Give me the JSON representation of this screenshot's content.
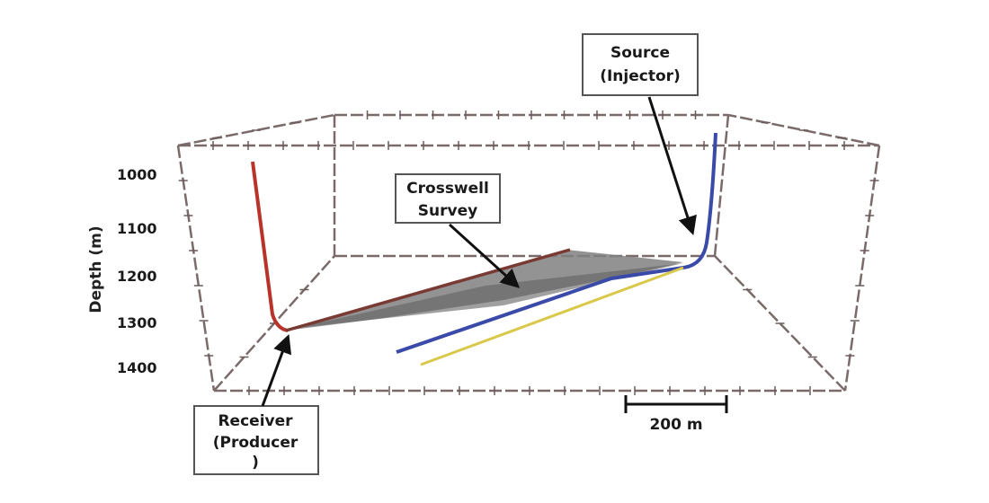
{
  "axis": {
    "ylabel": "Depth (m)",
    "ticks": [
      "1000",
      "1100",
      "1200",
      "1300",
      "1400"
    ]
  },
  "labels": {
    "source_line1": "Source",
    "source_line2": "(Injector)",
    "crosswell_line1": "Crosswell",
    "crosswell_line2": "Survey",
    "receiver_line1": "Receiver",
    "receiver_line2": "(Producer",
    "receiver_line3": ")"
  },
  "scale_bar": {
    "label": "200 m"
  },
  "colors": {
    "receiver_well": "#b8342a",
    "producer_lateral": "#7a3a34",
    "source_well": "#3a4aa8",
    "offset_well": "#d9c84a",
    "survey_plane": "#808080",
    "box_frame": "#7a6a6a"
  },
  "icons": {
    "receiver_arrow": "arrow-icon",
    "source_arrow": "arrow-icon",
    "crosswell_arrow": "arrow-icon"
  }
}
